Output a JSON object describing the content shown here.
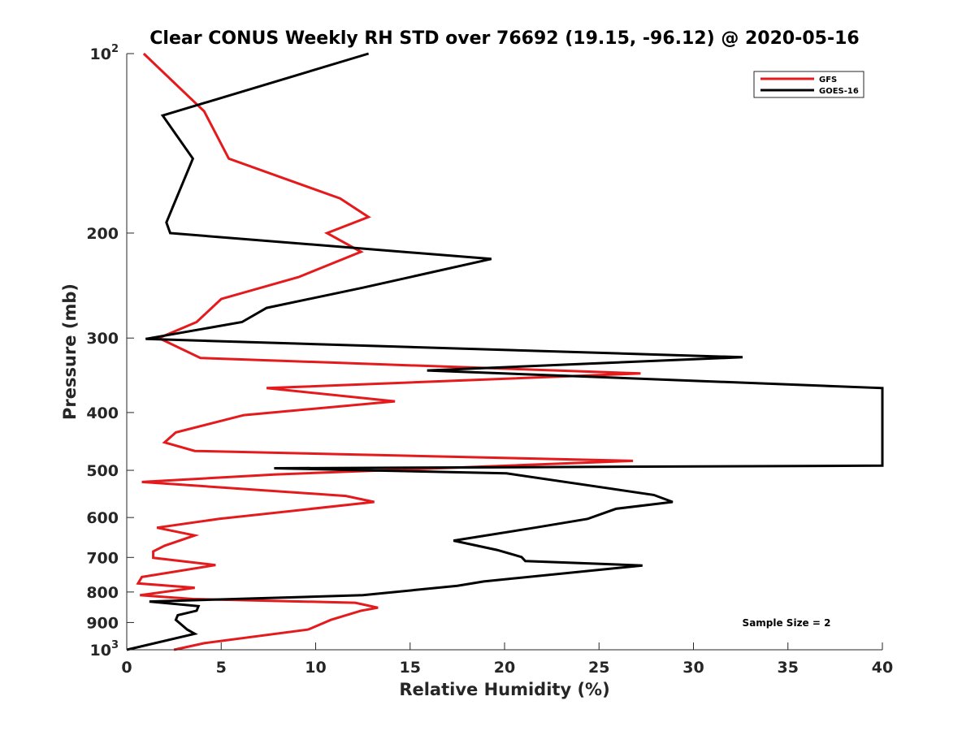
{
  "chart_data": {
    "type": "line",
    "title": "Clear CONUS Weekly RH STD over 76692 (19.15, -96.12) @ 2020-05-16",
    "xlabel": "Relative Humidity (%)",
    "ylabel": "Pressure (mb)",
    "xlim": [
      0,
      40
    ],
    "ylim": [
      100,
      1000
    ],
    "yscale": "log",
    "yreversed": true,
    "x_ticks": [
      0,
      5,
      10,
      15,
      20,
      25,
      30,
      35,
      40
    ],
    "x_tick_labels": [
      "0",
      "5",
      "10",
      "15",
      "20",
      "25",
      "30",
      "35",
      "40"
    ],
    "y_ticks": [
      100,
      200,
      300,
      400,
      500,
      600,
      700,
      800,
      900,
      1000
    ],
    "y_tick_labels": [
      {
        "value": 100,
        "base": "10",
        "exp": "2"
      },
      {
        "value": 200,
        "base": "200",
        "exp": ""
      },
      {
        "value": 300,
        "base": "300",
        "exp": ""
      },
      {
        "value": 400,
        "base": "400",
        "exp": ""
      },
      {
        "value": 500,
        "base": "500",
        "exp": ""
      },
      {
        "value": 600,
        "base": "600",
        "exp": ""
      },
      {
        "value": 700,
        "base": "700",
        "exp": ""
      },
      {
        "value": 800,
        "base": "800",
        "exp": ""
      },
      {
        "value": 900,
        "base": "900",
        "exp": ""
      },
      {
        "value": 1000,
        "base": "10",
        "exp": "3"
      }
    ],
    "legend_position": "top-right",
    "annotation": "Sample Size = 2",
    "series": [
      {
        "name": "GFS",
        "color": "#e41a1c",
        "points": [
          [
            0.9,
            100
          ],
          [
            4.1,
            125
          ],
          [
            5.4,
            150
          ],
          [
            11.3,
            175
          ],
          [
            12.8,
            188
          ],
          [
            10.6,
            200
          ],
          [
            12.4,
            215
          ],
          [
            9.1,
            237
          ],
          [
            5.0,
            258
          ],
          [
            3.7,
            282
          ],
          [
            1.7,
            300
          ],
          [
            3.9,
            324
          ],
          [
            27.2,
            344
          ],
          [
            7.4,
            364
          ],
          [
            14.2,
            383
          ],
          [
            6.2,
            404
          ],
          [
            2.6,
            432
          ],
          [
            2.0,
            449
          ],
          [
            3.6,
            464
          ],
          [
            26.8,
            482
          ],
          [
            7.9,
            508
          ],
          [
            0.8,
            523
          ],
          [
            11.6,
            552
          ],
          [
            13.1,
            565
          ],
          [
            4.9,
            603
          ],
          [
            1.6,
            624
          ],
          [
            3.6,
            643
          ],
          [
            2.0,
            669
          ],
          [
            1.4,
            684
          ],
          [
            1.4,
            701
          ],
          [
            4.7,
            721
          ],
          [
            0.8,
            755
          ],
          [
            0.6,
            774
          ],
          [
            3.6,
            787
          ],
          [
            0.7,
            810
          ],
          [
            3.5,
            822
          ],
          [
            12.1,
            834
          ],
          [
            13.3,
            850
          ],
          [
            12.4,
            860
          ],
          [
            10.8,
            891
          ],
          [
            9.6,
            925
          ],
          [
            4.1,
            975
          ],
          [
            2.5,
            1000
          ]
        ]
      },
      {
        "name": "GOES-16",
        "color": "#000000",
        "points": [
          [
            12.8,
            100
          ],
          [
            1.9,
            127
          ],
          [
            3.5,
            150
          ],
          [
            2.4,
            182
          ],
          [
            2.1,
            192
          ],
          [
            2.3,
            200
          ],
          [
            19.3,
            221
          ],
          [
            12.5,
            247
          ],
          [
            7.4,
            267
          ],
          [
            6.1,
            282
          ],
          [
            1.0,
            301
          ],
          [
            32.6,
            323
          ],
          [
            15.9,
            340
          ],
          [
            40.0,
            364
          ],
          [
            40.0,
            491
          ],
          [
            7.8,
            496
          ],
          [
            20.1,
            506
          ],
          [
            27.9,
            550
          ],
          [
            28.9,
            565
          ],
          [
            25.9,
            580
          ],
          [
            24.4,
            603
          ],
          [
            21.6,
            624
          ],
          [
            17.3,
            656
          ],
          [
            19.6,
            680
          ],
          [
            20.9,
            699
          ],
          [
            21.1,
            710
          ],
          [
            27.3,
            722
          ],
          [
            18.9,
            768
          ],
          [
            17.5,
            781
          ],
          [
            12.5,
            810
          ],
          [
            1.2,
            830
          ],
          [
            3.8,
            845
          ],
          [
            3.7,
            860
          ],
          [
            2.7,
            875
          ],
          [
            2.6,
            891
          ],
          [
            3.2,
            925
          ],
          [
            3.6,
            940
          ],
          [
            0.0,
            1000
          ]
        ]
      }
    ]
  }
}
